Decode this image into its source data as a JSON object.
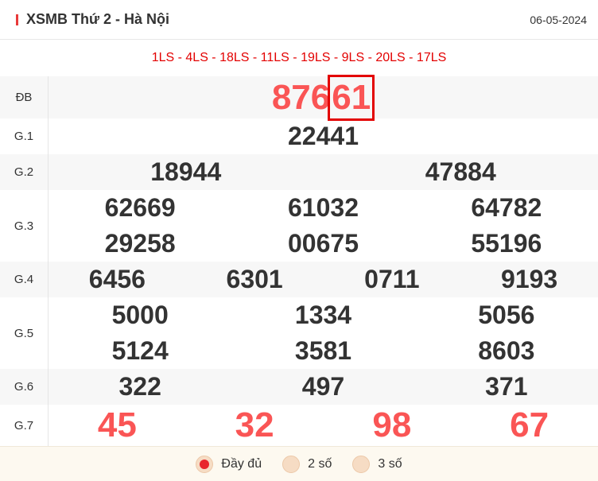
{
  "header": {
    "title": "XSMB Thứ 2 - Hà Nội",
    "date": "06-05-2024"
  },
  "codes": "1LS - 4LS - 18LS - 11LS - 19LS - 9LS - 20LS - 17LS",
  "prizes": {
    "db": {
      "label": "ĐB",
      "prefix": "876",
      "suffix": "61"
    },
    "g1": {
      "label": "G.1",
      "values": [
        "22441"
      ]
    },
    "g2": {
      "label": "G.2",
      "values": [
        "18944",
        "47884"
      ]
    },
    "g3": {
      "label": "G.3",
      "values": [
        "62669",
        "61032",
        "64782",
        "29258",
        "00675",
        "55196"
      ]
    },
    "g4": {
      "label": "G.4",
      "values": [
        "6456",
        "6301",
        "0711",
        "9193"
      ]
    },
    "g5": {
      "label": "G.5",
      "values": [
        "5000",
        "1334",
        "5056",
        "5124",
        "3581",
        "8603"
      ]
    },
    "g6": {
      "label": "G.6",
      "values": [
        "322",
        "497",
        "371"
      ]
    },
    "g7": {
      "label": "G.7",
      "values": [
        "45",
        "32",
        "98",
        "67"
      ]
    }
  },
  "footer": {
    "options": [
      {
        "label": "Đầy đủ",
        "selected": true
      },
      {
        "label": "2 số",
        "selected": false
      },
      {
        "label": "3 số",
        "selected": false
      }
    ]
  },
  "colors": {
    "accent": "#e30000",
    "highlight_number": "#fa5555"
  }
}
